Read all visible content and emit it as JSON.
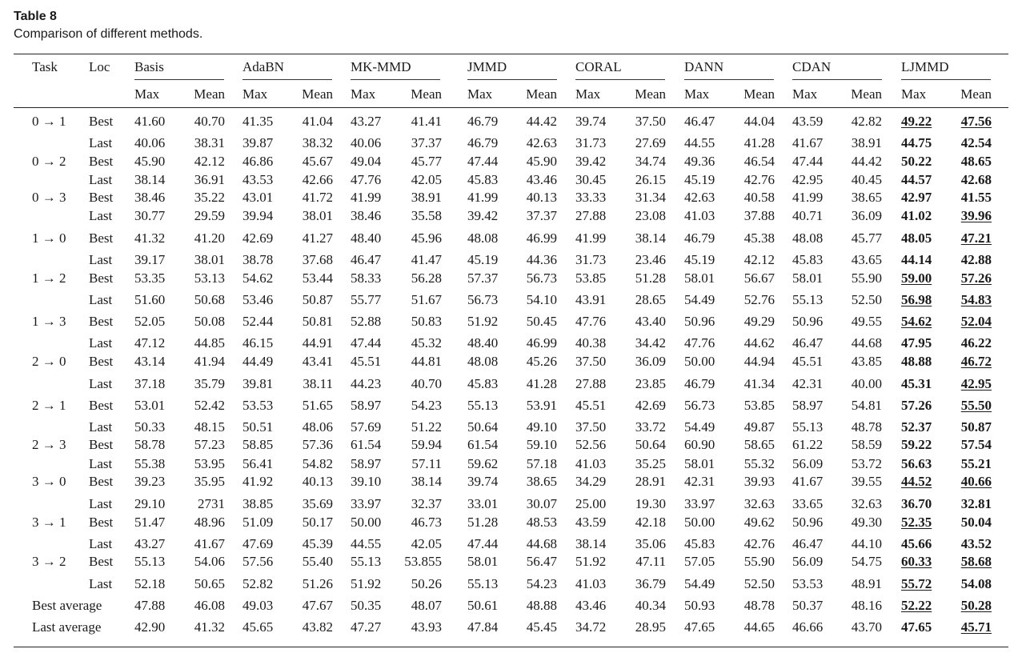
{
  "table": {
    "label": "Table 8",
    "title": "Comparison of different methods.",
    "header": {
      "task": "Task",
      "loc": "Loc",
      "methods": [
        "Basis",
        "AdaBN",
        "MK-MMD",
        "JMMD",
        "CORAL",
        "DANN",
        "CDAN",
        "LJMMD"
      ],
      "max": "Max",
      "mean": "Mean"
    },
    "rows": [
      {
        "task": "0 → 1",
        "loc": "Best",
        "values": [
          "41.60",
          "40.70",
          "41.35",
          "41.04",
          "43.27",
          "41.41",
          "46.79",
          "44.42",
          "39.74",
          "37.50",
          "46.47",
          "44.04",
          "43.59",
          "42.82",
          "49.22",
          "47.56"
        ],
        "lj_underline": [
          true,
          true
        ]
      },
      {
        "task": "",
        "loc": "Last",
        "values": [
          "40.06",
          "38.31",
          "39.87",
          "38.32",
          "40.06",
          "37.37",
          "46.79",
          "42.63",
          "31.73",
          "27.69",
          "44.55",
          "41.28",
          "41.67",
          "38.91",
          "44.75",
          "42.54"
        ],
        "lj_underline": [
          false,
          false
        ]
      },
      {
        "task": "0 → 2",
        "loc": "Best",
        "values": [
          "45.90",
          "42.12",
          "46.86",
          "45.67",
          "49.04",
          "45.77",
          "47.44",
          "45.90",
          "39.42",
          "34.74",
          "49.36",
          "46.54",
          "47.44",
          "44.42",
          "50.22",
          "48.65"
        ],
        "lj_underline": [
          false,
          false
        ]
      },
      {
        "task": "",
        "loc": "Last",
        "values": [
          "38.14",
          "36.91",
          "43.53",
          "42.66",
          "47.76",
          "42.05",
          "45.83",
          "43.46",
          "30.45",
          "26.15",
          "45.19",
          "42.76",
          "42.95",
          "40.45",
          "44.57",
          "42.68"
        ],
        "lj_underline": [
          false,
          false
        ]
      },
      {
        "task": "0 → 3",
        "loc": "Best",
        "values": [
          "38.46",
          "35.22",
          "43.01",
          "41.72",
          "41.99",
          "38.91",
          "41.99",
          "40.13",
          "33.33",
          "31.34",
          "42.63",
          "40.58",
          "41.99",
          "38.65",
          "42.97",
          "41.55"
        ],
        "lj_underline": [
          false,
          false
        ]
      },
      {
        "task": "",
        "loc": "Last",
        "values": [
          "30.77",
          "29.59",
          "39.94",
          "38.01",
          "38.46",
          "35.58",
          "39.42",
          "37.37",
          "27.88",
          "23.08",
          "41.03",
          "37.88",
          "40.71",
          "36.09",
          "41.02",
          "39.96"
        ],
        "lj_underline": [
          false,
          true
        ]
      },
      {
        "task": "1 → 0",
        "loc": "Best",
        "values": [
          "41.32",
          "41.20",
          "42.69",
          "41.27",
          "48.40",
          "45.96",
          "48.08",
          "46.99",
          "41.99",
          "38.14",
          "46.79",
          "45.38",
          "48.08",
          "45.77",
          "48.05",
          "47.21"
        ],
        "lj_underline": [
          false,
          true
        ]
      },
      {
        "task": "",
        "loc": "Last",
        "values": [
          "39.17",
          "38.01",
          "38.78",
          "37.68",
          "46.47",
          "41.47",
          "45.19",
          "44.36",
          "31.73",
          "23.46",
          "45.19",
          "42.12",
          "45.83",
          "43.65",
          "44.14",
          "42.88"
        ],
        "lj_underline": [
          false,
          false
        ]
      },
      {
        "task": "1 → 2",
        "loc": "Best",
        "values": [
          "53.35",
          "53.13",
          "54.62",
          "53.44",
          "58.33",
          "56.28",
          "57.37",
          "56.73",
          "53.85",
          "51.28",
          "58.01",
          "56.67",
          "58.01",
          "55.90",
          "59.00",
          "57.26"
        ],
        "lj_underline": [
          true,
          true
        ]
      },
      {
        "task": "",
        "loc": "Last",
        "values": [
          "51.60",
          "50.68",
          "53.46",
          "50.87",
          "55.77",
          "51.67",
          "56.73",
          "54.10",
          "43.91",
          "28.65",
          "54.49",
          "52.76",
          "55.13",
          "52.50",
          "56.98",
          "54.83"
        ],
        "lj_underline": [
          true,
          true
        ]
      },
      {
        "task": "1 → 3",
        "loc": "Best",
        "values": [
          "52.05",
          "50.08",
          "52.44",
          "50.81",
          "52.88",
          "50.83",
          "51.92",
          "50.45",
          "47.76",
          "43.40",
          "50.96",
          "49.29",
          "50.96",
          "49.55",
          "54.62",
          "52.04"
        ],
        "lj_underline": [
          true,
          true
        ]
      },
      {
        "task": "",
        "loc": "Last",
        "values": [
          "47.12",
          "44.85",
          "46.15",
          "44.91",
          "47.44",
          "45.32",
          "48.40",
          "46.99",
          "40.38",
          "34.42",
          "47.76",
          "44.62",
          "46.47",
          "44.68",
          "47.95",
          "46.22"
        ],
        "lj_underline": [
          false,
          false
        ]
      },
      {
        "task": "2 → 0",
        "loc": "Best",
        "values": [
          "43.14",
          "41.94",
          "44.49",
          "43.41",
          "45.51",
          "44.81",
          "48.08",
          "45.26",
          "37.50",
          "36.09",
          "50.00",
          "44.94",
          "45.51",
          "43.85",
          "48.88",
          "46.72"
        ],
        "lj_underline": [
          false,
          true
        ]
      },
      {
        "task": "",
        "loc": "Last",
        "values": [
          "37.18",
          "35.79",
          "39.81",
          "38.11",
          "44.23",
          "40.70",
          "45.83",
          "41.28",
          "27.88",
          "23.85",
          "46.79",
          "41.34",
          "42.31",
          "40.00",
          "45.31",
          "42.95"
        ],
        "lj_underline": [
          false,
          true
        ]
      },
      {
        "task": "2 → 1",
        "loc": "Best",
        "values": [
          "53.01",
          "52.42",
          "53.53",
          "51.65",
          "58.97",
          "54.23",
          "55.13",
          "53.91",
          "45.51",
          "42.69",
          "56.73",
          "53.85",
          "58.97",
          "54.81",
          "57.26",
          "55.50"
        ],
        "lj_underline": [
          false,
          true
        ]
      },
      {
        "task": "",
        "loc": "Last",
        "values": [
          "50.33",
          "48.15",
          "50.51",
          "48.06",
          "57.69",
          "51.22",
          "50.64",
          "49.10",
          "37.50",
          "33.72",
          "54.49",
          "49.87",
          "55.13",
          "48.78",
          "52.37",
          "50.87"
        ],
        "lj_underline": [
          false,
          false
        ]
      },
      {
        "task": "2 → 3",
        "loc": "Best",
        "values": [
          "58.78",
          "57.23",
          "58.85",
          "57.36",
          "61.54",
          "59.94",
          "61.54",
          "59.10",
          "52.56",
          "50.64",
          "60.90",
          "58.65",
          "61.22",
          "58.59",
          "59.22",
          "57.54"
        ],
        "lj_underline": [
          false,
          false
        ]
      },
      {
        "task": "",
        "loc": "Last",
        "values": [
          "55.38",
          "53.95",
          "56.41",
          "54.82",
          "58.97",
          "57.11",
          "59.62",
          "57.18",
          "41.03",
          "35.25",
          "58.01",
          "55.32",
          "56.09",
          "53.72",
          "56.63",
          "55.21"
        ],
        "lj_underline": [
          false,
          false
        ]
      },
      {
        "task": "3 → 0",
        "loc": "Best",
        "values": [
          "39.23",
          "35.95",
          "41.92",
          "40.13",
          "39.10",
          "38.14",
          "39.74",
          "38.65",
          "34.29",
          "28.91",
          "42.31",
          "39.93",
          "41.67",
          "39.55",
          "44.52",
          "40.66"
        ],
        "lj_underline": [
          true,
          true
        ]
      },
      {
        "task": "",
        "loc": "Last",
        "values": [
          "29.10",
          "2731",
          "38.85",
          "35.69",
          "33.97",
          "32.37",
          "33.01",
          "30.07",
          "25.00",
          "19.30",
          "33.97",
          "32.63",
          "33.65",
          "32.63",
          "36.70",
          "32.81"
        ],
        "lj_underline": [
          false,
          false
        ]
      },
      {
        "task": "3 → 1",
        "loc": "Best",
        "values": [
          "51.47",
          "48.96",
          "51.09",
          "50.17",
          "50.00",
          "46.73",
          "51.28",
          "48.53",
          "43.59",
          "42.18",
          "50.00",
          "49.62",
          "50.96",
          "49.30",
          "52.35",
          "50.04"
        ],
        "lj_underline": [
          true,
          false
        ]
      },
      {
        "task": "",
        "loc": "Last",
        "values": [
          "43.27",
          "41.67",
          "47.69",
          "45.39",
          "44.55",
          "42.05",
          "47.44",
          "44.68",
          "38.14",
          "35.06",
          "45.83",
          "42.76",
          "46.47",
          "44.10",
          "45.66",
          "43.52"
        ],
        "lj_underline": [
          false,
          false
        ]
      },
      {
        "task": "3 → 2",
        "loc": "Best",
        "values": [
          "55.13",
          "54.06",
          "57.56",
          "55.40",
          "55.13",
          "53.855",
          "58.01",
          "56.47",
          "51.92",
          "47.11",
          "57.05",
          "55.90",
          "56.09",
          "54.75",
          "60.33",
          "58.68"
        ],
        "lj_underline": [
          true,
          true
        ]
      },
      {
        "task": "",
        "loc": "Last",
        "values": [
          "52.18",
          "50.65",
          "52.82",
          "51.26",
          "51.92",
          "50.26",
          "55.13",
          "54.23",
          "41.03",
          "36.79",
          "54.49",
          "52.50",
          "53.53",
          "48.91",
          "55.72",
          "54.08"
        ],
        "lj_underline": [
          true,
          false
        ]
      },
      {
        "task": "Best average",
        "loc": "",
        "values": [
          "47.88",
          "46.08",
          "49.03",
          "47.67",
          "50.35",
          "48.07",
          "50.61",
          "48.88",
          "43.46",
          "40.34",
          "50.93",
          "48.78",
          "50.37",
          "48.16",
          "52.22",
          "50.28"
        ],
        "lj_underline": [
          true,
          true
        ]
      },
      {
        "task": "Last average",
        "loc": "",
        "values": [
          "42.90",
          "41.32",
          "45.65",
          "43.82",
          "47.27",
          "43.93",
          "47.84",
          "45.45",
          "34.72",
          "28.95",
          "47.65",
          "44.65",
          "46.66",
          "43.70",
          "47.65",
          "45.71"
        ],
        "lj_underline": [
          false,
          true
        ]
      }
    ]
  }
}
